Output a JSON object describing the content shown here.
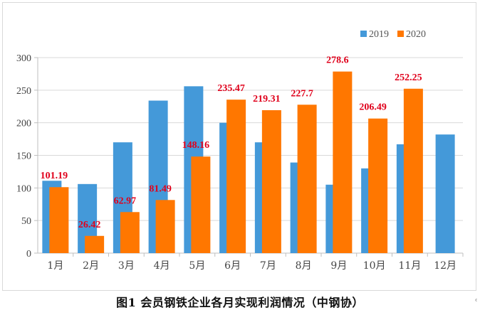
{
  "caption": "图1  会员钢铁企业各月实现利润情况（中钢协）",
  "corner_mark": "ᶜ",
  "chart_data": {
    "type": "bar",
    "title": "",
    "xlabel": "",
    "ylabel": "",
    "ylim": [
      0,
      300
    ],
    "yticks": [
      0,
      50,
      100,
      150,
      200,
      250,
      300
    ],
    "grid": true,
    "legend_position": "top-right",
    "categories": [
      "1月",
      "2月",
      "3月",
      "4月",
      "5月",
      "6月",
      "7月",
      "8月",
      "9月",
      "10月",
      "11月",
      "12月"
    ],
    "series": [
      {
        "name": "2019",
        "color": "#4499d9",
        "values": [
          111,
          106,
          170,
          234,
          256,
          200,
          170,
          139,
          105,
          130,
          167,
          182
        ]
      },
      {
        "name": "2020",
        "color": "#ff7700",
        "values": [
          101.19,
          26.42,
          62.97,
          81.49,
          148.16,
          235.47,
          219.31,
          227.7,
          278.6,
          206.49,
          252.25,
          null
        ],
        "data_labels": [
          "101.19",
          "26.42",
          "62.97",
          "81.49",
          "148.16",
          "235.47",
          "219.31",
          "227.7",
          "278.6",
          "206.49",
          "252.25",
          ""
        ]
      }
    ],
    "data_label_color": "#e0001b"
  }
}
